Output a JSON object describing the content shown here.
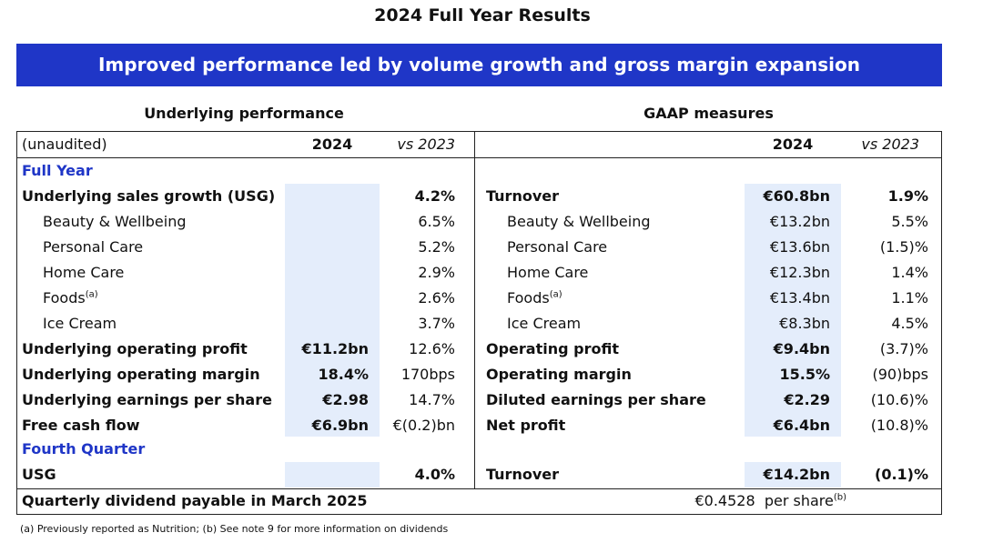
{
  "title": "2024 Full Year Results",
  "banner": "Improved performance led by volume growth and gross margin expansion",
  "accent_color": "#1f36c7",
  "shade_color": "#e4edfb",
  "left": {
    "heading": "Underlying performance",
    "col_label": "(unaudited)",
    "col_year": "2024",
    "col_vs": "vs 2023",
    "full_year_label": "Full Year",
    "rows": [
      {
        "label": "Underlying sales growth (USG)",
        "value": "",
        "vs": "4.2%",
        "bold": true
      },
      {
        "label": "Beauty & Wellbeing",
        "value": "",
        "vs": "6.5%",
        "bold": false
      },
      {
        "label": "Personal Care",
        "value": "",
        "vs": "5.2%",
        "bold": false
      },
      {
        "label": "Home Care",
        "value": "",
        "vs": "2.9%",
        "bold": false
      },
      {
        "label": "Foods",
        "sup": "(a)",
        "value": "",
        "vs": "2.6%",
        "bold": false
      },
      {
        "label": "Ice Cream",
        "value": "",
        "vs": "3.7%",
        "bold": false
      },
      {
        "label": "Underlying operating profit",
        "value": "€11.2bn",
        "vs": "12.6%",
        "bold": true
      },
      {
        "label": "Underlying operating margin",
        "value": "18.4%",
        "vs": "170bps",
        "bold": true
      },
      {
        "label": "Underlying earnings per share",
        "value": "€2.98",
        "vs": "14.7%",
        "bold": true
      },
      {
        "label": "Free cash flow",
        "value": "€6.9bn",
        "vs": "€(0.2)bn",
        "bold": true
      }
    ],
    "fourth_quarter_label": "Fourth Quarter",
    "q4_row": {
      "label": "USG",
      "value": "",
      "vs": "4.0%"
    }
  },
  "right": {
    "heading": "GAAP measures",
    "col_year": "2024",
    "col_vs": "vs 2023",
    "rows": [
      {
        "label": "Turnover",
        "value": "€60.8bn",
        "vs": "1.9%",
        "bold": true
      },
      {
        "label": "Beauty & Wellbeing",
        "value": "€13.2bn",
        "vs": "5.5%",
        "bold": false
      },
      {
        "label": "Personal Care",
        "value": "€13.6bn",
        "vs": "(1.5)%",
        "bold": false
      },
      {
        "label": "Home Care",
        "value": "€12.3bn",
        "vs": "1.4%",
        "bold": false
      },
      {
        "label": "Foods",
        "sup": "(a)",
        "value": "€13.4bn",
        "vs": "1.1%",
        "bold": false
      },
      {
        "label": "Ice Cream",
        "value": "€8.3bn",
        "vs": "4.5%",
        "bold": false
      },
      {
        "label": "Operating profit",
        "value": "€9.4bn",
        "vs": "(3.7)%",
        "bold": true
      },
      {
        "label": "Operating margin",
        "value": "15.5%",
        "vs": "(90)bps",
        "bold": true
      },
      {
        "label": "Diluted earnings per share",
        "value": "€2.29",
        "vs": "(10.6)%",
        "bold": true
      },
      {
        "label": "Net profit",
        "value": "€6.4bn",
        "vs": "(10.8)%",
        "bold": true
      }
    ],
    "q4_row": {
      "label": "Turnover",
      "value": "€14.2bn",
      "vs": "(0.1)%"
    }
  },
  "dividend": {
    "label": "Quarterly dividend payable in March 2025",
    "value": "€0.4528  per share",
    "sup": "(b)"
  },
  "footnote": "(a) Previously reported as Nutrition; (b) See note 9 for more information on dividends"
}
